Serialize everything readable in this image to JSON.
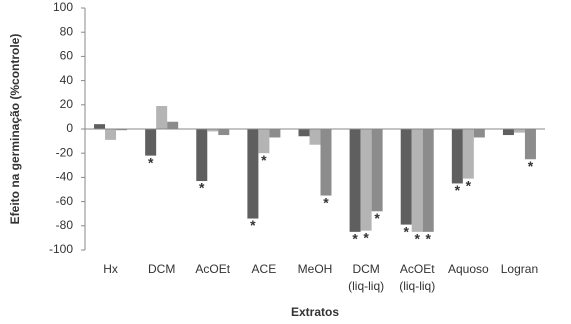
{
  "chart_data": {
    "type": "bar",
    "y_label": "Efeito na germinação (%controle)",
    "x_label": "Extratos",
    "categories": [
      [
        "Hx"
      ],
      [
        "DCM"
      ],
      [
        "AcOEt"
      ],
      [
        "ACE"
      ],
      [
        "MeOH"
      ],
      [
        "DCM",
        "(liq-liq)"
      ],
      [
        "AcOEt",
        "(liq-liq)"
      ],
      [
        "Aquoso"
      ],
      [
        "Logran"
      ]
    ],
    "series": [
      {
        "color": "#5f5f5f",
        "values": [
          4,
          -22,
          -43,
          -74,
          -6,
          -85,
          -79,
          -45,
          -5
        ],
        "significance": [
          null,
          "*",
          "*",
          "*",
          null,
          "*",
          "*",
          "*",
          null
        ]
      },
      {
        "color": "#b4b4b4",
        "values": [
          -9,
          19,
          -2,
          -20,
          -13,
          -84,
          -85,
          -41,
          -3
        ],
        "significance": [
          null,
          null,
          null,
          "*",
          null,
          "*",
          "*",
          "*",
          null
        ]
      },
      {
        "color": "#8c8c8c",
        "values": [
          -1,
          6,
          -5,
          -7,
          -55,
          -68,
          -85,
          -7,
          -25
        ],
        "significance": [
          null,
          null,
          null,
          null,
          "*",
          "*",
          "*",
          null,
          "*"
        ]
      }
    ],
    "ylim": [
      -100,
      100
    ],
    "yticks": [
      -100,
      -80,
      -60,
      -40,
      -20,
      0,
      20,
      40,
      60,
      80,
      100
    ]
  }
}
